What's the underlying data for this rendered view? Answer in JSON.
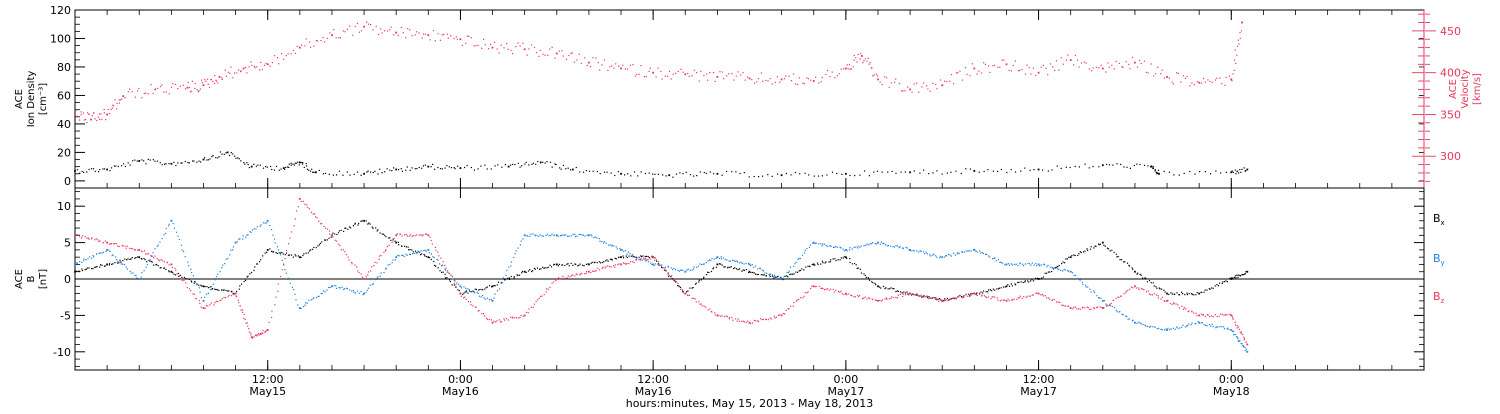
{
  "colors": {
    "black": "#000000",
    "velocity": "#e8365d",
    "by": "#1e7fd8",
    "bz": "#e8365d"
  },
  "time_axis": {
    "start": "2013-05-15T00:00",
    "end": "2013-05-18T12:00",
    "ticks": [
      {
        "time": "2013-05-15T12:00",
        "label": "12:00",
        "day": "May15"
      },
      {
        "time": "2013-05-16T00:00",
        "label": "0:00",
        "day": "May16"
      },
      {
        "time": "2013-05-16T12:00",
        "label": "12:00",
        "day": "May16"
      },
      {
        "time": "2013-05-17T00:00",
        "label": "0:00",
        "day": "May17"
      },
      {
        "time": "2013-05-17T12:00",
        "label": "12:00",
        "day": "May17"
      },
      {
        "time": "2013-05-18T00:00",
        "label": "0:00",
        "day": "May18"
      }
    ],
    "xlabel": "hours:minutes, May 15, 2013 - May 18, 2013"
  },
  "chart_data": [
    {
      "type": "scatter",
      "left_ylabel": [
        "ACE",
        "Ion Density",
        "[cm⁻³]"
      ],
      "right_ylabel": [
        "ACE",
        "Velocity",
        "[km/s]"
      ],
      "left_ylim": [
        -5,
        120
      ],
      "left_ticks": [
        0,
        20,
        40,
        60,
        80,
        100,
        120
      ],
      "right_ylim": [
        262,
        475
      ],
      "right_ticks": [
        300,
        350,
        400,
        450
      ],
      "grid": false,
      "series": [
        {
          "axis": "left",
          "color": "#000000",
          "points": [
            [
              "2013-05-15T00:00",
              7
            ],
            [
              "2013-05-15T02:00",
              8
            ],
            [
              "2013-05-15T04:00",
              14
            ],
            [
              "2013-05-15T06:00",
              12
            ],
            [
              "2013-05-15T08:00",
              15
            ],
            [
              "2013-05-15T09:30",
              20
            ],
            [
              "2013-05-15T11:00",
              10
            ],
            [
              "2013-05-15T13:00",
              9
            ],
            [
              "2013-05-15T14:00",
              13
            ],
            [
              "2013-05-15T15:00",
              6
            ],
            [
              "2013-05-15T18:00",
              5
            ],
            [
              "2013-05-15T20:00",
              8
            ],
            [
              "2013-05-15T22:00",
              10
            ],
            [
              "2013-05-16T00:00",
              9
            ],
            [
              "2013-05-16T03:00",
              10
            ],
            [
              "2013-05-16T05:00",
              13
            ],
            [
              "2013-05-16T07:00",
              8
            ],
            [
              "2013-05-16T10:00",
              5
            ],
            [
              "2013-05-16T13:00",
              4
            ],
            [
              "2013-05-16T16:00",
              5
            ],
            [
              "2013-05-16T20:00",
              4
            ],
            [
              "2013-05-17T00:00",
              5
            ],
            [
              "2013-05-17T04:00",
              6
            ],
            [
              "2013-05-17T08:00",
              7
            ],
            [
              "2013-05-17T12:00",
              8
            ],
            [
              "2013-05-17T16:00",
              11
            ],
            [
              "2013-05-17T19:00",
              10
            ],
            [
              "2013-05-17T19:30",
              5
            ],
            [
              "2013-05-18T00:00",
              6
            ],
            [
              "2013-05-18T01:00",
              8
            ]
          ]
        },
        {
          "axis": "right",
          "color": "#e8365d",
          "points": [
            [
              "2013-05-15T00:00",
              350
            ],
            [
              "2013-05-15T01:00",
              344
            ],
            [
              "2013-05-15T02:00",
              350
            ],
            [
              "2013-05-15T03:00",
              372
            ],
            [
              "2013-05-15T05:00",
              380
            ],
            [
              "2013-05-15T07:00",
              382
            ],
            [
              "2013-05-15T08:00",
              385
            ],
            [
              "2013-05-15T09:00",
              395
            ],
            [
              "2013-05-15T10:30",
              405
            ],
            [
              "2013-05-15T12:00",
              410
            ],
            [
              "2013-05-15T14:00",
              430
            ],
            [
              "2013-05-15T16:00",
              445
            ],
            [
              "2013-05-15T18:00",
              455
            ],
            [
              "2013-05-15T20:00",
              448
            ],
            [
              "2013-05-15T22:00",
              445
            ],
            [
              "2013-05-16T00:00",
              440
            ],
            [
              "2013-05-16T02:00",
              430
            ],
            [
              "2013-05-16T04:00",
              428
            ],
            [
              "2013-05-16T06:00",
              423
            ],
            [
              "2013-05-16T08:00",
              412
            ],
            [
              "2013-05-16T10:00",
              405
            ],
            [
              "2013-05-16T12:00",
              400
            ],
            [
              "2013-05-16T14:00",
              398
            ],
            [
              "2013-05-16T16:00",
              395
            ],
            [
              "2013-05-16T18:00",
              393
            ],
            [
              "2013-05-16T20:00",
              392
            ],
            [
              "2013-05-16T22:00",
              390
            ],
            [
              "2013-05-17T00:00",
              405
            ],
            [
              "2013-05-17T01:00",
              420
            ],
            [
              "2013-05-17T02:00",
              392
            ],
            [
              "2013-05-17T04:00",
              380
            ],
            [
              "2013-05-17T06:00",
              385
            ],
            [
              "2013-05-17T08:00",
              405
            ],
            [
              "2013-05-17T10:00",
              410
            ],
            [
              "2013-05-17T12:00",
              400
            ],
            [
              "2013-05-17T14:00",
              415
            ],
            [
              "2013-05-17T16:00",
              405
            ],
            [
              "2013-05-17T18:00",
              412
            ],
            [
              "2013-05-17T20:00",
              395
            ],
            [
              "2013-05-17T22:00",
              388
            ],
            [
              "2013-05-18T00:00",
              392
            ],
            [
              "2013-05-18T00:40",
              460
            ]
          ]
        }
      ]
    },
    {
      "type": "scatter",
      "left_ylabel": [
        "ACE",
        "B",
        "[nT]"
      ],
      "left_ylim": [
        -12.5,
        12.5
      ],
      "left_ticks": [
        -10,
        -5,
        0,
        5,
        10
      ],
      "zero_line": true,
      "grid": false,
      "legend": [
        "Bx",
        "By",
        "Bz"
      ],
      "series": [
        {
          "name": "Bx",
          "color": "#000000",
          "points": [
            [
              "2013-05-15T00:00",
              1
            ],
            [
              "2013-05-15T02:00",
              2
            ],
            [
              "2013-05-15T04:00",
              3
            ],
            [
              "2013-05-15T06:00",
              1
            ],
            [
              "2013-05-15T08:00",
              -1
            ],
            [
              "2013-05-15T10:00",
              -2
            ],
            [
              "2013-05-15T12:00",
              4
            ],
            [
              "2013-05-15T14:00",
              3
            ],
            [
              "2013-05-15T16:00",
              6
            ],
            [
              "2013-05-15T18:00",
              8
            ],
            [
              "2013-05-15T20:00",
              5
            ],
            [
              "2013-05-15T22:00",
              3
            ],
            [
              "2013-05-16T00:00",
              -2
            ],
            [
              "2013-05-16T02:00",
              -1
            ],
            [
              "2013-05-16T04:00",
              1
            ],
            [
              "2013-05-16T06:00",
              2
            ],
            [
              "2013-05-16T08:00",
              2
            ],
            [
              "2013-05-16T10:00",
              3
            ],
            [
              "2013-05-16T12:00",
              3
            ],
            [
              "2013-05-16T14:00",
              -2
            ],
            [
              "2013-05-16T16:00",
              2
            ],
            [
              "2013-05-16T18:00",
              1
            ],
            [
              "2013-05-16T20:00",
              0
            ],
            [
              "2013-05-16T22:00",
              2
            ],
            [
              "2013-05-17T00:00",
              3
            ],
            [
              "2013-05-17T02:00",
              -1
            ],
            [
              "2013-05-17T04:00",
              -2
            ],
            [
              "2013-05-17T06:00",
              -3
            ],
            [
              "2013-05-17T08:00",
              -2
            ],
            [
              "2013-05-17T10:00",
              -1
            ],
            [
              "2013-05-17T12:00",
              0
            ],
            [
              "2013-05-17T14:00",
              3
            ],
            [
              "2013-05-17T16:00",
              5
            ],
            [
              "2013-05-17T18:00",
              1
            ],
            [
              "2013-05-17T20:00",
              -2
            ],
            [
              "2013-05-17T22:00",
              -2
            ],
            [
              "2013-05-18T00:00",
              0
            ],
            [
              "2013-05-18T01:00",
              1
            ]
          ]
        },
        {
          "name": "By",
          "color": "#1e7fd8",
          "points": [
            [
              "2013-05-15T00:00",
              2
            ],
            [
              "2013-05-15T02:00",
              4
            ],
            [
              "2013-05-15T04:00",
              0
            ],
            [
              "2013-05-15T06:00",
              8
            ],
            [
              "2013-05-15T08:00",
              -3
            ],
            [
              "2013-05-15T10:00",
              5
            ],
            [
              "2013-05-15T12:00",
              8
            ],
            [
              "2013-05-15T14:00",
              -4
            ],
            [
              "2013-05-15T16:00",
              -1
            ],
            [
              "2013-05-15T18:00",
              -2
            ],
            [
              "2013-05-15T20:00",
              3
            ],
            [
              "2013-05-15T22:00",
              4
            ],
            [
              "2013-05-16T00:00",
              -1
            ],
            [
              "2013-05-16T02:00",
              -3
            ],
            [
              "2013-05-16T04:00",
              6
            ],
            [
              "2013-05-16T06:00",
              6
            ],
            [
              "2013-05-16T08:00",
              6
            ],
            [
              "2013-05-16T10:00",
              4
            ],
            [
              "2013-05-16T12:00",
              2
            ],
            [
              "2013-05-16T14:00",
              1
            ],
            [
              "2013-05-16T16:00",
              3
            ],
            [
              "2013-05-16T18:00",
              2
            ],
            [
              "2013-05-16T20:00",
              0
            ],
            [
              "2013-05-16T22:00",
              5
            ],
            [
              "2013-05-17T00:00",
              4
            ],
            [
              "2013-05-17T02:00",
              5
            ],
            [
              "2013-05-17T04:00",
              4
            ],
            [
              "2013-05-17T06:00",
              3
            ],
            [
              "2013-05-17T08:00",
              4
            ],
            [
              "2013-05-17T10:00",
              2
            ],
            [
              "2013-05-17T12:00",
              2
            ],
            [
              "2013-05-17T14:00",
              1
            ],
            [
              "2013-05-17T16:00",
              -3
            ],
            [
              "2013-05-17T18:00",
              -6
            ],
            [
              "2013-05-17T20:00",
              -7
            ],
            [
              "2013-05-17T22:00",
              -6
            ],
            [
              "2013-05-18T00:00",
              -7
            ],
            [
              "2013-05-18T01:00",
              -10
            ]
          ]
        },
        {
          "name": "Bz",
          "color": "#e8365d",
          "points": [
            [
              "2013-05-15T00:00",
              6
            ],
            [
              "2013-05-15T02:00",
              5
            ],
            [
              "2013-05-15T04:00",
              4
            ],
            [
              "2013-05-15T06:00",
              2
            ],
            [
              "2013-05-15T08:00",
              -4
            ],
            [
              "2013-05-15T10:00",
              -2
            ],
            [
              "2013-05-15T11:00",
              -8
            ],
            [
              "2013-05-15T12:00",
              -7
            ],
            [
              "2013-05-15T14:00",
              11
            ],
            [
              "2013-05-15T16:00",
              6
            ],
            [
              "2013-05-15T18:00",
              0
            ],
            [
              "2013-05-15T20:00",
              6
            ],
            [
              "2013-05-15T22:00",
              6
            ],
            [
              "2013-05-16T00:00",
              -2
            ],
            [
              "2013-05-16T02:00",
              -6
            ],
            [
              "2013-05-16T04:00",
              -5
            ],
            [
              "2013-05-16T06:00",
              0
            ],
            [
              "2013-05-16T08:00",
              1
            ],
            [
              "2013-05-16T10:00",
              2
            ],
            [
              "2013-05-16T12:00",
              3
            ],
            [
              "2013-05-16T14:00",
              -2
            ],
            [
              "2013-05-16T16:00",
              -5
            ],
            [
              "2013-05-16T18:00",
              -6
            ],
            [
              "2013-05-16T20:00",
              -5
            ],
            [
              "2013-05-16T22:00",
              -1
            ],
            [
              "2013-05-17T00:00",
              -2
            ],
            [
              "2013-05-17T02:00",
              -3
            ],
            [
              "2013-05-17T04:00",
              -2
            ],
            [
              "2013-05-17T06:00",
              -3
            ],
            [
              "2013-05-17T08:00",
              -2
            ],
            [
              "2013-05-17T10:00",
              -3
            ],
            [
              "2013-05-17T12:00",
              -2
            ],
            [
              "2013-05-17T14:00",
              -4
            ],
            [
              "2013-05-17T16:00",
              -4
            ],
            [
              "2013-05-17T18:00",
              -1
            ],
            [
              "2013-05-17T20:00",
              -3
            ],
            [
              "2013-05-17T22:00",
              -5
            ],
            [
              "2013-05-18T00:00",
              -5
            ],
            [
              "2013-05-18T01:00",
              -9
            ]
          ]
        }
      ]
    }
  ]
}
